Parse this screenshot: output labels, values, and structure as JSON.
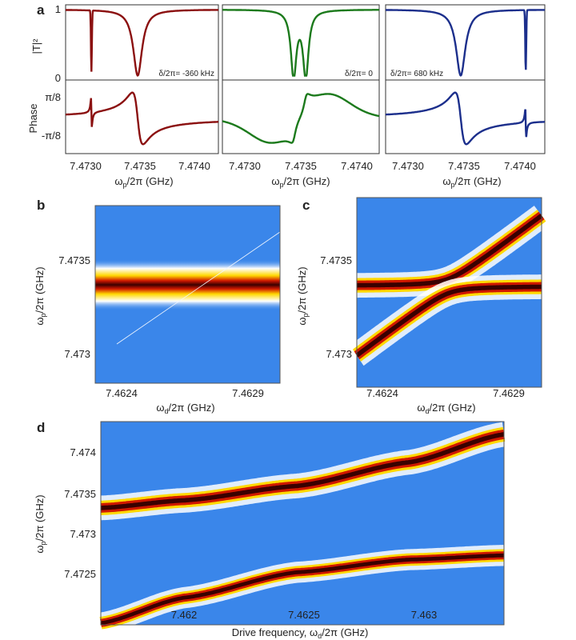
{
  "chart_data": [
    {
      "id": "a",
      "type": "line",
      "panel_label": "a",
      "ylabel_top": "|T|²",
      "ylabel_bottom": "Phase",
      "y_ticks_top": [
        "1",
        "0"
      ],
      "y_ticks_bottom": [
        "π/8",
        "-π/8"
      ],
      "x_ticks": [
        "7.4730",
        "7.4735",
        "7.4740"
      ],
      "xlim": [
        7.4727,
        7.47412
      ],
      "xlabel_main": "ω",
      "xlabel_sub": "p",
      "xlabel_rest": "/2π (GHz)",
      "subplots": [
        {
          "detuning_label": "δ/2π= -360 kHz",
          "color": "#8b1010",
          "f_cavity": 7.47337,
          "f_spike": 7.47294,
          "split_hz": 0
        },
        {
          "detuning_label": "δ/2π= 0",
          "color": "#1c7a1c",
          "f_cavity": 7.4734,
          "f_spike": 7.4734,
          "split_hz": 0.00011
        },
        {
          "detuning_label": "δ/2π= 680 kHz",
          "color": "#1c2f8c",
          "f_cavity": 7.47337,
          "f_spike": 7.47395,
          "split_hz": 0
        }
      ]
    },
    {
      "id": "b",
      "type": "heatmap",
      "panel_label": "b",
      "ylabel_main": "ω",
      "ylabel_sub": "p",
      "ylabel_rest": "/2π (GHz)",
      "xlabel_main": "ω",
      "xlabel_sub": "d",
      "xlabel_rest": "/2π (GHz)",
      "x_ticks": [
        7.4624,
        7.4629
      ],
      "y_ticks": [
        7.473,
        7.4735
      ],
      "xlim": [
        7.46229,
        7.46302
      ],
      "ylim": [
        7.47281,
        7.47386
      ],
      "cavity_freq": 7.47337,
      "coupling": 0.0
    },
    {
      "id": "c",
      "type": "heatmap",
      "panel_label": "c",
      "ylabel_main": "ω",
      "ylabel_sub": "p",
      "ylabel_rest": "/2π (GHz)",
      "xlabel_main": "ω",
      "xlabel_sub": "d",
      "xlabel_rest": "/2π (GHz)",
      "x_ticks": [
        7.4624,
        7.4629
      ],
      "y_ticks": [
        7.473,
        7.4735
      ],
      "xlim": [
        7.46229,
        7.46302
      ],
      "ylim": [
        7.47281,
        7.47386
      ],
      "cavity_freq": 7.47337,
      "coupling": 4e-05
    },
    {
      "id": "d",
      "type": "heatmap",
      "panel_label": "d",
      "ylabel_main": "ω",
      "ylabel_sub": "p",
      "ylabel_rest": "/2π (GHz)",
      "xlabel_main": "Drive frequency, ω",
      "xlabel_sub": "d",
      "xlabel_rest": "/2π (GHz)",
      "x_ticks": [
        7.462,
        7.4625,
        7.463
      ],
      "y_ticks": [
        7.4725,
        7.473,
        7.4735,
        7.474
      ],
      "xlim": [
        7.46163,
        7.46342
      ],
      "ylim": [
        7.47208,
        7.47448
      ],
      "upper_branch": {
        "x": [
          7.46163,
          7.462,
          7.4625,
          7.463,
          7.46342
        ],
        "y": [
          7.47346,
          7.47355,
          7.47372,
          7.474,
          7.47433
        ]
      },
      "lower_branch": {
        "x": [
          7.46163,
          7.462,
          7.4625,
          7.463,
          7.46342
        ],
        "y": [
          7.4721,
          7.4724,
          7.4727,
          7.47285,
          7.4729
        ]
      }
    }
  ]
}
